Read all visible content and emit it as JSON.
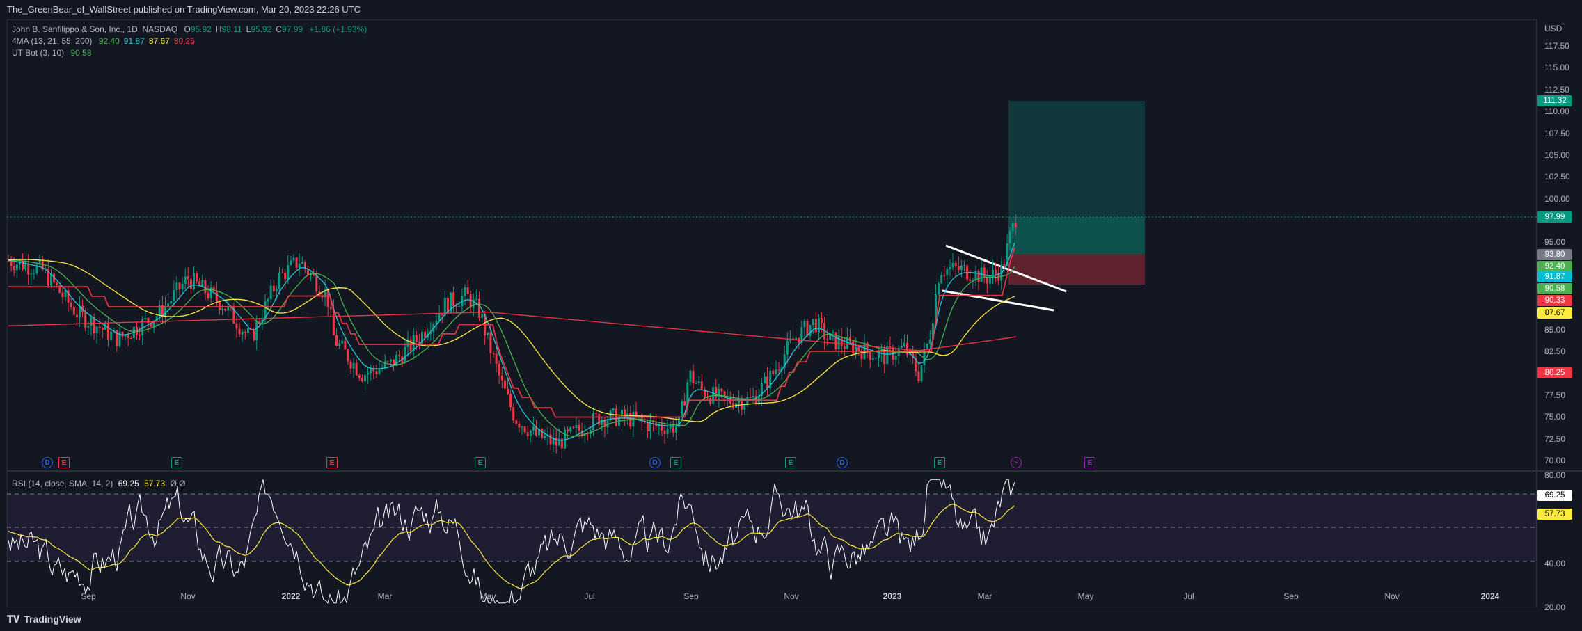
{
  "header": {
    "text": "The_GreenBear_of_WallStreet published on TradingView.com, Mar 20, 2023 22:26 UTC"
  },
  "footer": {
    "logo_text": "TradingView",
    "logo_icon": "tradingview-logo-icon"
  },
  "legend": {
    "symbol": "John B. Sanfilippo & Son, Inc., 1D, NASDAQ",
    "ohlc": [
      {
        "k": "O",
        "v": "95.92"
      },
      {
        "k": "H",
        "v": "98.11"
      },
      {
        "k": "L",
        "v": "95.92"
      },
      {
        "k": "C",
        "v": "97.99"
      }
    ],
    "change": "+1.86 (+1.93%)",
    "ma_label": "4MA (13, 21, 55, 200)",
    "ma_values": [
      {
        "v": "92.40",
        "color": "#4caf50"
      },
      {
        "v": "91.87",
        "color": "#26c6da"
      },
      {
        "v": "87.67",
        "color": "#ffeb3b"
      },
      {
        "v": "80.25",
        "color": "#f23645"
      }
    ],
    "utbot_label": "UT Bot (3, 10)",
    "utbot_value": "90.58"
  },
  "rsi_legend": {
    "label": "RSI (14, close, SMA, 14, 2)",
    "value": "69.25",
    "sma": "57.73",
    "extra": "Ø Ø"
  },
  "axis": {
    "currency": "USD",
    "price_ticks": [
      "117.50",
      "115.00",
      "112.50",
      "110.00",
      "107.50",
      "105.00",
      "102.50",
      "100.00",
      "95.00",
      "85.00",
      "82.50",
      "77.50",
      "75.00",
      "72.50",
      "70.00"
    ],
    "rsi_ticks": [
      "80.00",
      "40.00",
      "20.00"
    ],
    "time_ticks": [
      "Sep",
      "Nov",
      "2022",
      "Mar",
      "May",
      "Jul",
      "Sep",
      "Nov",
      "2023",
      "Mar",
      "May",
      "Jul",
      "Sep",
      "Nov",
      "2024"
    ]
  },
  "price_labels": [
    {
      "v": "111.32",
      "color": "#089981"
    },
    {
      "v": "97.99",
      "color": "#089981"
    },
    {
      "v": "93.80",
      "color": "#787b86"
    },
    {
      "v": "92.40",
      "color": "#4caf50"
    },
    {
      "v": "91.87",
      "color": "#00bcd4"
    },
    {
      "v": "90.58",
      "color": "#4caf50"
    },
    {
      "v": "90.33",
      "color": "#f23645"
    },
    {
      "v": "87.67",
      "color": "#ffeb3b"
    },
    {
      "v": "80.25",
      "color": "#f23645"
    }
  ],
  "rsi_labels": [
    {
      "v": "69.25",
      "color": "#ffffff"
    },
    {
      "v": "57.73",
      "color": "#ffeb3b"
    }
  ],
  "events": [
    {
      "text": "D",
      "color": "#2962ff"
    },
    {
      "text": "E",
      "color": "#f23645"
    },
    {
      "text": "E",
      "color": "#089981"
    },
    {
      "text": "E",
      "color": "#f23645"
    },
    {
      "text": "E",
      "color": "#089981"
    },
    {
      "text": "D",
      "color": "#2962ff"
    },
    {
      "text": "E",
      "color": "#089981"
    },
    {
      "text": "E",
      "color": "#089981"
    },
    {
      "text": "D",
      "color": "#2962ff"
    },
    {
      "text": "E",
      "color": "#089981"
    },
    {
      "text": "⚡",
      "color": "#9c27b0"
    },
    {
      "text": "E",
      "color": "#9c27b0"
    }
  ],
  "colors": {
    "bg": "#131722",
    "up": "#089981",
    "down": "#f23645",
    "rsi_band": "#7e57c2"
  }
}
